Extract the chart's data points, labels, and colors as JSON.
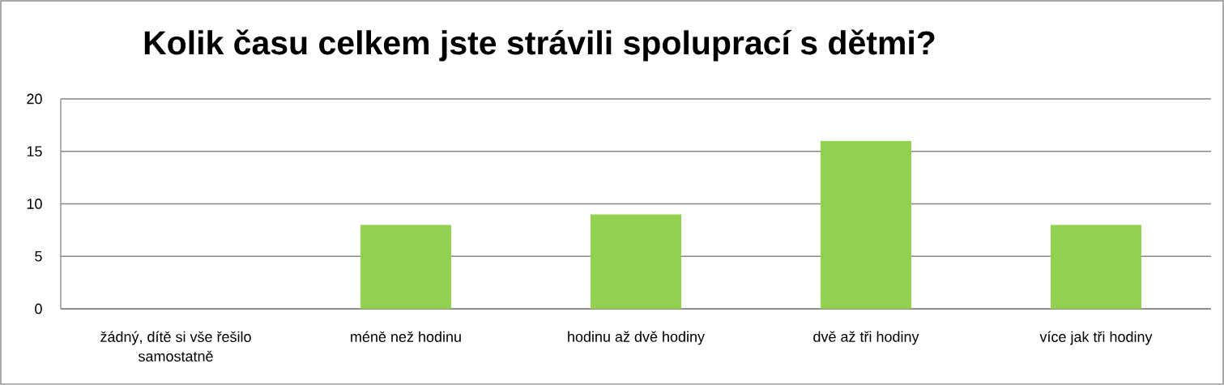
{
  "chart_data": {
    "type": "bar",
    "title": "Kolik času celkem jste strávili spoluprací s dětmi?",
    "categories": [
      "žádný, dítě si vše řešilo samostatně",
      "méně než hodinu",
      "hodinu až dvě hodiny",
      "dvě až tři hodiny",
      "více jak tři hodiny"
    ],
    "values": [
      0,
      8,
      9,
      16,
      8
    ],
    "color": "#92d050",
    "ylim": [
      0,
      20
    ],
    "yticks": [
      0,
      5,
      10,
      15,
      20
    ],
    "grid": "y"
  }
}
